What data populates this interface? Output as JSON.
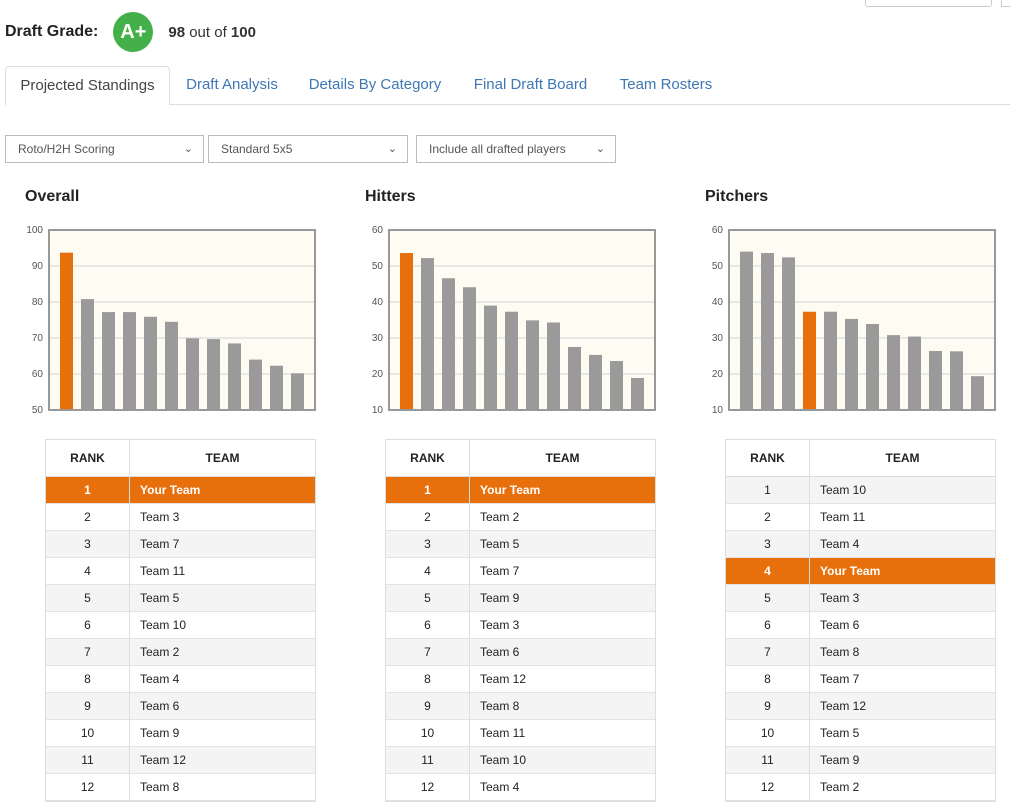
{
  "grade": {
    "label": "Draft Grade:",
    "grade": "A+",
    "score": "98",
    "out_of": "out of",
    "max": "100"
  },
  "tabs": [
    {
      "label": "Projected Standings",
      "active": true
    },
    {
      "label": "Draft Analysis",
      "active": false
    },
    {
      "label": "Details By Category",
      "active": false
    },
    {
      "label": "Final Draft Board",
      "active": false
    },
    {
      "label": "Team Rosters",
      "active": false
    }
  ],
  "filters": {
    "scoring": "Roto/H2H Scoring",
    "format": "Standard 5x5",
    "players": "Include all drafted players"
  },
  "colors": {
    "highlight": "#e8700c",
    "bar": "#9a9a9a",
    "plot_bg": "#fefbf3",
    "grade": "#44b04a",
    "link": "#3f77b5"
  },
  "table_headers": {
    "rank": "RANK",
    "team": "TEAM"
  },
  "panels": [
    {
      "title": "Overall",
      "rows": [
        {
          "rank": "1",
          "team": "Your Team",
          "mine": true
        },
        {
          "rank": "2",
          "team": "Team 3"
        },
        {
          "rank": "3",
          "team": "Team 7"
        },
        {
          "rank": "4",
          "team": "Team 11"
        },
        {
          "rank": "5",
          "team": "Team 5"
        },
        {
          "rank": "6",
          "team": "Team 10"
        },
        {
          "rank": "7",
          "team": "Team 2"
        },
        {
          "rank": "8",
          "team": "Team 4"
        },
        {
          "rank": "9",
          "team": "Team 6"
        },
        {
          "rank": "10",
          "team": "Team 9"
        },
        {
          "rank": "11",
          "team": "Team 12"
        },
        {
          "rank": "12",
          "team": "Team 8"
        }
      ]
    },
    {
      "title": "Hitters",
      "rows": [
        {
          "rank": "1",
          "team": "Your Team",
          "mine": true
        },
        {
          "rank": "2",
          "team": "Team 2"
        },
        {
          "rank": "3",
          "team": "Team 5"
        },
        {
          "rank": "4",
          "team": "Team 7"
        },
        {
          "rank": "5",
          "team": "Team 9"
        },
        {
          "rank": "6",
          "team": "Team 3"
        },
        {
          "rank": "7",
          "team": "Team 6"
        },
        {
          "rank": "8",
          "team": "Team 12"
        },
        {
          "rank": "9",
          "team": "Team 8"
        },
        {
          "rank": "10",
          "team": "Team 11"
        },
        {
          "rank": "11",
          "team": "Team 10"
        },
        {
          "rank": "12",
          "team": "Team 4"
        }
      ]
    },
    {
      "title": "Pitchers",
      "rows": [
        {
          "rank": "1",
          "team": "Team 10"
        },
        {
          "rank": "2",
          "team": "Team 11"
        },
        {
          "rank": "3",
          "team": "Team 4"
        },
        {
          "rank": "4",
          "team": "Your Team",
          "mine": true
        },
        {
          "rank": "5",
          "team": "Team 3"
        },
        {
          "rank": "6",
          "team": "Team 6"
        },
        {
          "rank": "7",
          "team": "Team 8"
        },
        {
          "rank": "8",
          "team": "Team 7"
        },
        {
          "rank": "9",
          "team": "Team 12"
        },
        {
          "rank": "10",
          "team": "Team 5"
        },
        {
          "rank": "11",
          "team": "Team 9"
        },
        {
          "rank": "12",
          "team": "Team 2"
        }
      ]
    }
  ],
  "chart_data": [
    {
      "type": "bar",
      "title": "Overall",
      "ylim": [
        50,
        100
      ],
      "yticks": [
        50,
        60,
        70,
        80,
        90,
        100
      ],
      "grid": true,
      "values": [
        93.7,
        80.8,
        77.2,
        77.2,
        75.9,
        74.5,
        69.9,
        69.7,
        68.5,
        64.0,
        62.3,
        60.2
      ],
      "highlight_index": 0
    },
    {
      "type": "bar",
      "title": "Hitters",
      "ylim": [
        10,
        60
      ],
      "yticks": [
        10,
        20,
        30,
        40,
        50,
        60
      ],
      "grid": true,
      "values": [
        53.6,
        52.2,
        46.6,
        44.1,
        39.0,
        37.3,
        34.9,
        34.3,
        27.5,
        25.3,
        23.6,
        18.9
      ],
      "highlight_index": 0
    },
    {
      "type": "bar",
      "title": "Pitchers",
      "ylim": [
        10,
        60
      ],
      "yticks": [
        10,
        20,
        30,
        40,
        50,
        60
      ],
      "grid": true,
      "values": [
        54.0,
        53.6,
        52.4,
        37.3,
        37.3,
        35.3,
        33.9,
        30.8,
        30.4,
        26.4,
        26.3,
        19.4
      ],
      "highlight_index": 3
    }
  ]
}
